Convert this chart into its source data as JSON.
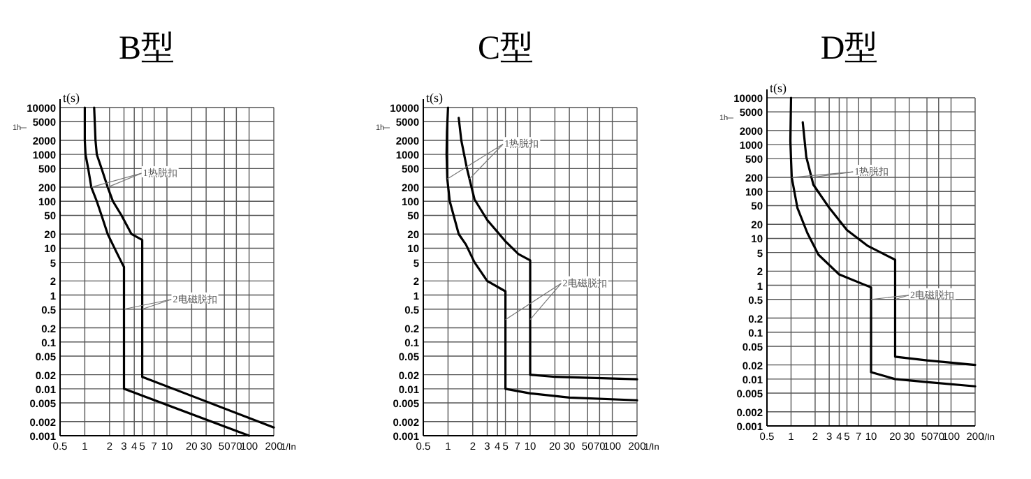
{
  "chart_data": [
    {
      "type": "line",
      "title": "B型",
      "xlabel": "1/In",
      "ylabel": "t(s)",
      "log": "xy",
      "grid": true,
      "xlim": [
        0.5,
        200
      ],
      "ylim": [
        0.001,
        10000
      ],
      "xticks": [
        0.5,
        1,
        2,
        3,
        4,
        5,
        7,
        10,
        20,
        30,
        50,
        70,
        100,
        200
      ],
      "yticks": [
        10000,
        5000,
        2000,
        1000,
        500,
        200,
        100,
        50,
        20,
        10,
        5,
        2,
        1,
        0.5,
        0.2,
        0.1,
        0.05,
        0.02,
        0.01,
        0.005,
        0.002,
        0.001
      ],
      "series": [
        {
          "color": "#000000",
          "x": [
            1,
            1,
            1.02,
            1.1,
            1.2,
            1.4,
            1.6,
            1.9,
            2.3,
            2.8,
            3,
            3,
            100
          ],
          "values": [
            10000,
            2000,
            1000,
            500,
            200,
            100,
            50,
            20,
            10,
            5,
            4,
            0.01,
            0.001
          ]
        },
        {
          "color": "#000000",
          "x": [
            1.3,
            1.35,
            1.4,
            1.6,
            1.9,
            2.2,
            2.8,
            3.7,
            5,
            5,
            200
          ],
          "values": [
            10000,
            2000,
            1000,
            500,
            200,
            100,
            50,
            20,
            15,
            0.018,
            0.0015
          ]
        }
      ],
      "annotations": [
        "1h",
        {
          "text": "1热脱扣",
          "x": 1.2,
          "y": 200
        },
        {
          "text": "2电磁脱扣",
          "x": 3,
          "y": 0.5
        }
      ]
    },
    {
      "type": "line",
      "title": "C型",
      "xlabel": "1/In",
      "ylabel": "t(s)",
      "log": "xy",
      "grid": true,
      "xlim": [
        0.5,
        200
      ],
      "ylim": [
        0.001,
        10000
      ],
      "xticks": [
        0.5,
        1,
        2,
        3,
        4,
        5,
        7,
        10,
        20,
        30,
        50,
        70,
        100,
        200
      ],
      "yticks": [
        10000,
        5000,
        2000,
        1000,
        500,
        200,
        100,
        50,
        20,
        10,
        5,
        2,
        1,
        0.5,
        0.2,
        0.1,
        0.05,
        0.02,
        0.01,
        0.005,
        0.002,
        0.001
      ],
      "series": [
        {
          "color": "#000000",
          "x": [
            1,
            0.97,
            0.96,
            0.98,
            1.05,
            1.35,
            1.65,
            2.1,
            3,
            5,
            5,
            10,
            30,
            200
          ],
          "values": [
            10000,
            3000,
            1000,
            300,
            100,
            20,
            12,
            5,
            2,
            1.2,
            0.01,
            0.008,
            0.0065,
            0.0057
          ]
        },
        {
          "color": "#000000",
          "x": [
            1.35,
            1.45,
            1.7,
            2.1,
            3,
            5,
            7.2,
            10,
            10,
            20,
            200
          ],
          "values": [
            6000,
            2000,
            500,
            110,
            40,
            14,
            7.5,
            5.5,
            0.02,
            0.018,
            0.016
          ]
        }
      ],
      "annotations": [
        "1h",
        {
          "text": "1热脱扣",
          "x": 0.98,
          "y": 300
        },
        {
          "text": "2电磁脱扣",
          "x": 5,
          "y": 0.3
        }
      ]
    },
    {
      "type": "line",
      "title": "D型",
      "xlabel": "I/In",
      "ylabel": "t(s)",
      "log": "xy",
      "grid": true,
      "xlim": [
        0.5,
        200
      ],
      "ylim": [
        0.001,
        10000
      ],
      "xticks": [
        0.5,
        1,
        2,
        3,
        4,
        5,
        7,
        10,
        20,
        30,
        50,
        70,
        100,
        200
      ],
      "yticks": [
        10000,
        5000,
        2000,
        1000,
        500,
        200,
        100,
        50,
        20,
        10,
        5,
        2,
        1,
        0.5,
        0.2,
        0.1,
        0.05,
        0.02,
        0.01,
        0.005,
        0.002,
        0.001
      ],
      "series": [
        {
          "color": "#000000",
          "x": [
            1,
            0.98,
            1.02,
            1.2,
            1.6,
            2.2,
            4,
            10,
            10,
            20,
            55,
            200
          ],
          "values": [
            10000,
            1200,
            200,
            45,
            13,
            4.5,
            1.7,
            0.9,
            0.014,
            0.01,
            0.0085,
            0.007
          ]
        },
        {
          "color": "#000000",
          "x": [
            1.4,
            1.55,
            1.9,
            3,
            5,
            9,
            20,
            20,
            50,
            200
          ],
          "values": [
            3000,
            550,
            140,
            45,
            15,
            7,
            3.5,
            0.03,
            0.025,
            0.02
          ]
        }
      ],
      "annotations": [
        "1h",
        {
          "text": "1热脱扣",
          "x": 1.02,
          "y": 200
        },
        {
          "text": "2电磁脱扣",
          "x": 10,
          "y": 0.5
        }
      ]
    }
  ]
}
